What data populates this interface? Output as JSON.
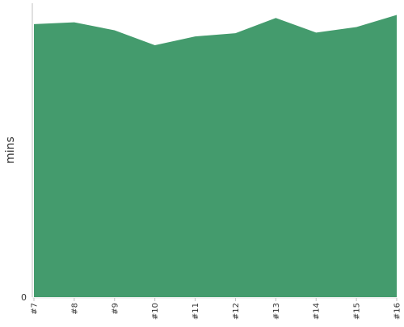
{
  "chart_data": {
    "type": "area",
    "categories": [
      "#7",
      "#8",
      "#9",
      "#10",
      "#11",
      "#12",
      "#13",
      "#14",
      "#15",
      "#16"
    ],
    "series": [
      {
        "values": [
          0.929,
          0.935,
          0.908,
          0.857,
          0.887,
          0.898,
          0.95,
          0.9,
          0.919,
          0.96
        ],
        "color": "#449b6d"
      }
    ],
    "ylabel": "mins",
    "xlabel": "",
    "title": "",
    "y_ticks": [
      0
    ],
    "ylim": [
      0,
      1
    ],
    "x_tick_rotation": "vertical",
    "grid": false,
    "legend": "none",
    "axis_color": "#c0c0c0"
  }
}
